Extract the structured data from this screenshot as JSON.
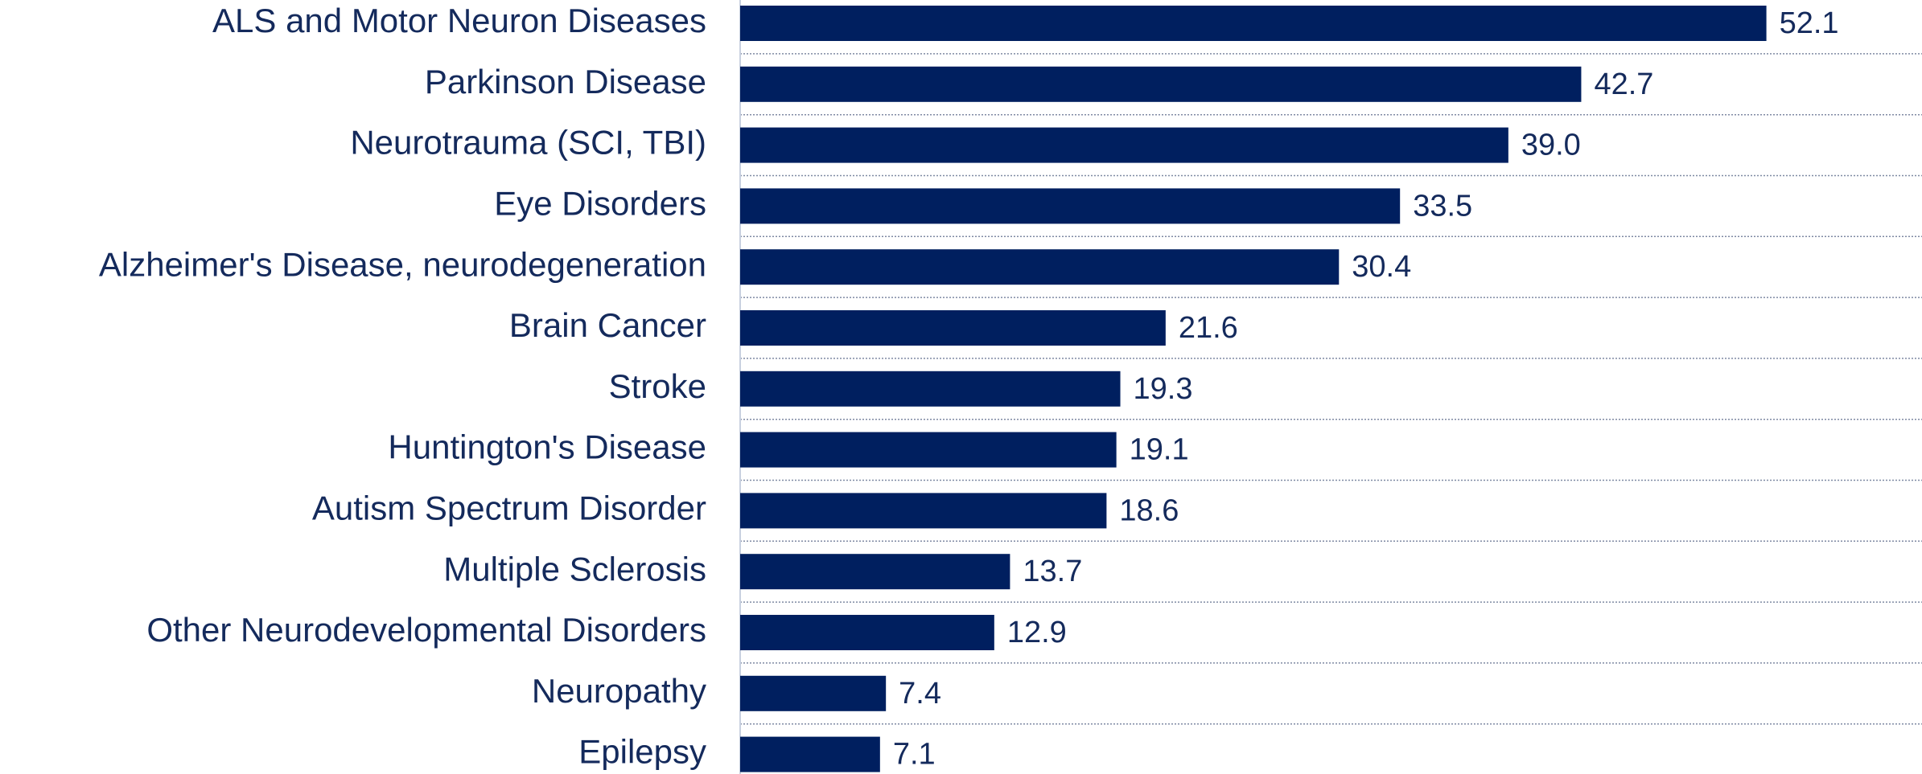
{
  "chart_data": {
    "type": "bar",
    "orientation": "horizontal",
    "categories": [
      "ALS and Motor Neuron Diseases",
      "Parkinson Disease",
      "Neurotrauma (SCI, TBI)",
      "Eye Disorders",
      "Alzheimer's Disease, neurodegeneration",
      "Brain Cancer",
      "Stroke",
      "Huntington's Disease",
      "Autism Spectrum Disorder",
      "Multiple Sclerosis",
      "Other Neurodevelopmental Disorders",
      "Neuropathy",
      "Epilepsy"
    ],
    "values": [
      52.1,
      42.7,
      39.0,
      33.5,
      30.4,
      21.6,
      19.3,
      19.1,
      18.6,
      13.7,
      12.9,
      7.4,
      7.1
    ],
    "value_labels": [
      "52.1",
      "42.7",
      "39.0",
      "33.5",
      "30.4",
      "21.6",
      "19.3",
      "19.1",
      "18.6",
      "13.7",
      "12.9",
      "7.4",
      "7.1"
    ],
    "color": "#001f5f",
    "xlim": [
      0,
      60
    ]
  }
}
